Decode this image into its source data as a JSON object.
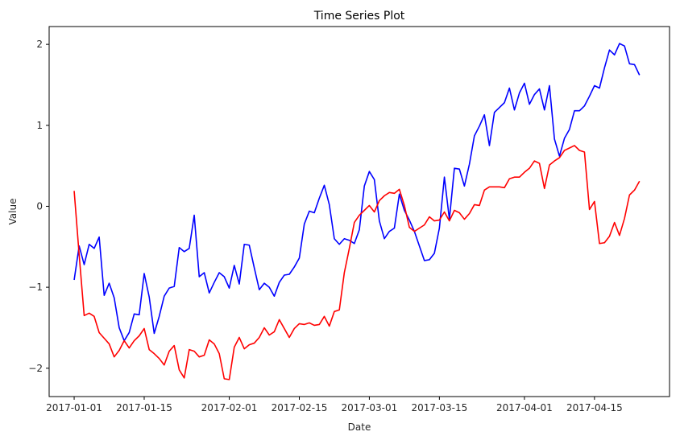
{
  "chart_data": {
    "type": "line",
    "title": "Time Series Plot",
    "xlabel": "Date",
    "ylabel": "Value",
    "xlim": [
      "2016-12-27",
      "2017-04-30"
    ],
    "ylim": [
      -2.35,
      2.22
    ],
    "grid": false,
    "legend": "none",
    "x_ticks": [
      "2017-01-01",
      "2017-01-15",
      "2017-02-01",
      "2017-02-15",
      "2017-03-01",
      "2017-03-15",
      "2017-04-01",
      "2017-04-15"
    ],
    "y_ticks": [
      -2,
      -1,
      0,
      1,
      2
    ],
    "x_start": "2017-01-01",
    "series": [
      {
        "color": "#0000ff",
        "values": [
          -0.91,
          -0.49,
          -0.72,
          -0.47,
          -0.52,
          -0.38,
          -1.1,
          -0.95,
          -1.13,
          -1.5,
          -1.66,
          -1.56,
          -1.33,
          -1.34,
          -0.83,
          -1.12,
          -1.57,
          -1.36,
          -1.11,
          -1.01,
          -0.99,
          -0.51,
          -0.56,
          -0.52,
          -0.11,
          -0.87,
          -0.82,
          -1.07,
          -0.94,
          -0.82,
          -0.87,
          -1.01,
          -0.73,
          -0.96,
          -0.47,
          -0.48,
          -0.76,
          -1.03,
          -0.95,
          -1.0,
          -1.11,
          -0.94,
          -0.85,
          -0.84,
          -0.75,
          -0.64,
          -0.22,
          -0.06,
          -0.08,
          0.1,
          0.26,
          0.02,
          -0.4,
          -0.47,
          -0.4,
          -0.42,
          -0.46,
          -0.29,
          0.25,
          0.43,
          0.33,
          -0.18,
          -0.4,
          -0.31,
          -0.27,
          0.15,
          -0.05,
          -0.17,
          -0.31,
          -0.49,
          -0.67,
          -0.66,
          -0.58,
          -0.27,
          0.36,
          -0.16,
          0.47,
          0.46,
          0.25,
          0.52,
          0.87,
          0.99,
          1.13,
          0.75,
          1.16,
          1.22,
          1.28,
          1.46,
          1.19,
          1.4,
          1.52,
          1.26,
          1.38,
          1.45,
          1.19,
          1.49,
          0.83,
          0.62,
          0.84,
          0.95,
          1.18,
          1.18,
          1.24,
          1.36,
          1.49,
          1.46,
          1.71,
          1.93,
          1.87,
          2.01,
          1.98,
          1.76,
          1.75,
          1.62
        ]
      },
      {
        "color": "#ff0000",
        "values": [
          0.19,
          -0.6,
          -1.35,
          -1.32,
          -1.36,
          -1.56,
          -1.63,
          -1.7,
          -1.86,
          -1.78,
          -1.66,
          -1.75,
          -1.66,
          -1.6,
          -1.51,
          -1.77,
          -1.82,
          -1.88,
          -1.96,
          -1.79,
          -1.72,
          -2.02,
          -2.12,
          -1.77,
          -1.79,
          -1.86,
          -1.84,
          -1.65,
          -1.7,
          -1.82,
          -2.13,
          -2.14,
          -1.74,
          -1.62,
          -1.76,
          -1.71,
          -1.69,
          -1.62,
          -1.5,
          -1.59,
          -1.55,
          -1.4,
          -1.51,
          -1.62,
          -1.51,
          -1.45,
          -1.46,
          -1.44,
          -1.47,
          -1.46,
          -1.36,
          -1.48,
          -1.3,
          -1.28,
          -0.82,
          -0.52,
          -0.2,
          -0.11,
          -0.05,
          0.01,
          -0.07,
          0.07,
          0.13,
          0.17,
          0.16,
          0.21,
          0.01,
          -0.26,
          -0.31,
          -0.27,
          -0.23,
          -0.13,
          -0.18,
          -0.17,
          -0.07,
          -0.18,
          -0.05,
          -0.08,
          -0.16,
          -0.09,
          0.02,
          0.01,
          0.2,
          0.24,
          0.24,
          0.24,
          0.23,
          0.34,
          0.36,
          0.36,
          0.42,
          0.47,
          0.56,
          0.53,
          0.22,
          0.51,
          0.56,
          0.6,
          0.69,
          0.72,
          0.75,
          0.69,
          0.67,
          -0.04,
          0.06,
          -0.46,
          -0.45,
          -0.37,
          -0.2,
          -0.36,
          -0.15,
          0.14,
          0.2,
          0.31
        ]
      }
    ]
  }
}
